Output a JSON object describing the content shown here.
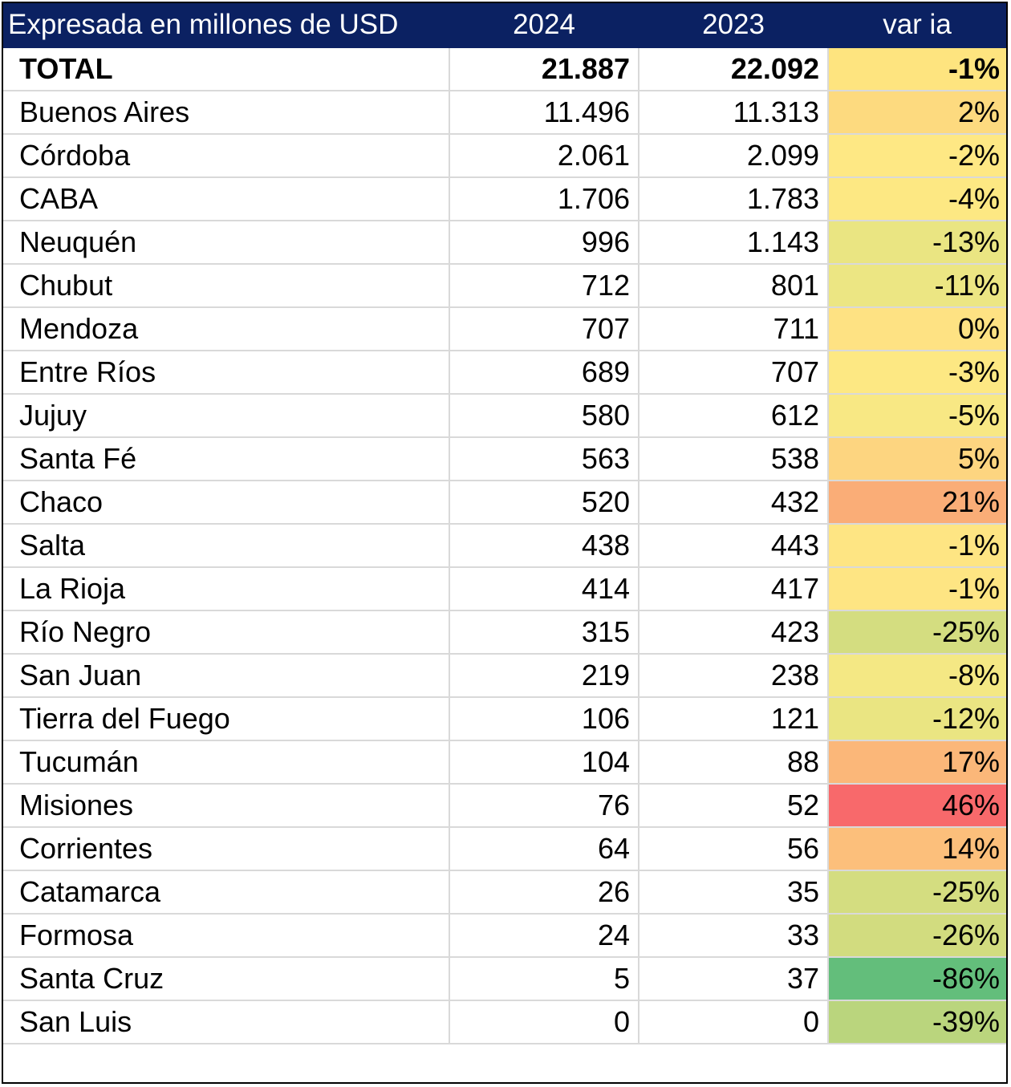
{
  "header": {
    "label": "Expresada en millones de USD",
    "col_2024": "2024",
    "col_2023": "2023",
    "col_var": "var ia"
  },
  "rows": [
    {
      "name": "TOTAL",
      "v2024": "21.887",
      "v2023": "22.092",
      "var": "-1%",
      "color": "#fee47f"
    },
    {
      "name": "Buenos Aires",
      "v2024": "11.496",
      "v2023": "11.313",
      "var": "2%",
      "color": "#fdda7f"
    },
    {
      "name": "Córdoba",
      "v2024": "2.061",
      "v2023": "2.099",
      "var": "-2%",
      "color": "#fee884"
    },
    {
      "name": "CABA",
      "v2024": "1.706",
      "v2023": "1.783",
      "var": "-4%",
      "color": "#fde883"
    },
    {
      "name": "Neuquén",
      "v2024": "996",
      "v2023": "1.143",
      "var": "-13%",
      "color": "#eae582"
    },
    {
      "name": "Chubut",
      "v2024": "712",
      "v2023": "801",
      "var": "-11%",
      "color": "#ece683"
    },
    {
      "name": "Mendoza",
      "v2024": "707",
      "v2023": "711",
      "var": "0%",
      "color": "#fee283"
    },
    {
      "name": "Entre Ríos",
      "v2024": "689",
      "v2023": "707",
      "var": "-3%",
      "color": "#fde883"
    },
    {
      "name": "Jujuy",
      "v2024": "580",
      "v2023": "612",
      "var": "-5%",
      "color": "#f8e884"
    },
    {
      "name": "Santa Fé",
      "v2024": "563",
      "v2023": "538",
      "var": "5%",
      "color": "#fdd580"
    },
    {
      "name": "Chaco",
      "v2024": "520",
      "v2023": "432",
      "var": "21%",
      "color": "#faad77"
    },
    {
      "name": "Salta",
      "v2024": "438",
      "v2023": "443",
      "var": "-1%",
      "color": "#fee583"
    },
    {
      "name": "La Rioja",
      "v2024": "414",
      "v2023": "417",
      "var": "-1%",
      "color": "#fee583"
    },
    {
      "name": "Río Negro",
      "v2024": "315",
      "v2023": "423",
      "var": "-25%",
      "color": "#d4dd80"
    },
    {
      "name": "San Juan",
      "v2024": "219",
      "v2023": "238",
      "var": "-8%",
      "color": "#f4e884"
    },
    {
      "name": "Tierra del Fuego",
      "v2024": "106",
      "v2023": "121",
      "var": "-12%",
      "color": "#eae582"
    },
    {
      "name": "Tucumán",
      "v2024": "104",
      "v2023": "88",
      "var": "17%",
      "color": "#fbb779"
    },
    {
      "name": "Misiones",
      "v2024": "76",
      "v2023": "52",
      "var": "46%",
      "color": "#f8696b"
    },
    {
      "name": "Corrientes",
      "v2024": "64",
      "v2023": "56",
      "var": "14%",
      "color": "#fcbf7b"
    },
    {
      "name": "Catamarca",
      "v2024": "26",
      "v2023": "35",
      "var": "-25%",
      "color": "#d4dd80"
    },
    {
      "name": "Formosa",
      "v2024": "24",
      "v2023": "33",
      "var": "-26%",
      "color": "#d2dc7f"
    },
    {
      "name": "Santa Cruz",
      "v2024": "5",
      "v2023": "37",
      "var": "-86%",
      "color": "#63be7b"
    },
    {
      "name": "San Luis",
      "v2024": "0",
      "v2023": "0",
      "var": "-39%",
      "color": "#bad57d"
    }
  ]
}
